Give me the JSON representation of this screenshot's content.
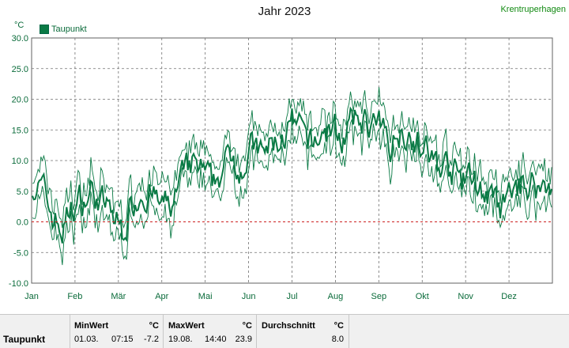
{
  "chart_data": {
    "type": "line",
    "title": "Jahr 2023",
    "station": "Krentruperhagen",
    "ylabel": "°C",
    "ylim": [
      -10,
      30
    ],
    "yticks": [
      "30.0",
      "25.0",
      "20.0",
      "15.0",
      "10.0",
      "5.0",
      "0.0",
      "-5.0",
      "-10.0"
    ],
    "months": [
      "Jan",
      "Feb",
      "Mär",
      "Apr",
      "Mai",
      "Jun",
      "Jul",
      "Aug",
      "Sep",
      "Okt",
      "Nov",
      "Dez"
    ],
    "grid": true,
    "legend": "top-left",
    "series": [
      {
        "name": "Taupunkt",
        "color": "#0a7a45"
      }
    ],
    "weekly_mean": [
      6.5,
      5.0,
      1.0,
      -1.5,
      2.5,
      3.5,
      5.0,
      3.0,
      1.0,
      -1.5,
      3.0,
      5.5,
      4.5,
      2.0,
      3.0,
      6.5,
      9.0,
      8.0,
      5.5,
      8.5,
      11.0,
      9.5,
      12.0,
      10.5,
      12.5,
      13.5,
      15.5,
      14.0,
      12.0,
      14.5,
      15.0,
      14.0,
      15.5,
      17.0,
      16.0,
      14.5,
      13.0,
      15.5,
      14.5,
      12.0,
      10.0,
      9.0,
      8.5,
      6.5,
      7.0,
      5.5,
      3.0,
      1.5,
      4.5,
      6.0,
      6.5,
      5.5,
      6.0
    ],
    "zero_line": {
      "value": 0,
      "color": "#cc2222"
    }
  },
  "stats": {
    "name": "Taupunkt",
    "min": {
      "header": "MinWert",
      "unit": "°C",
      "date": "01.03.",
      "time": "07:15",
      "value": "-7.2"
    },
    "max": {
      "header": "MaxWert",
      "unit": "°C",
      "date": "19.08.",
      "time": "14:40",
      "value": "23.9"
    },
    "avg": {
      "header": "Durchschnitt",
      "unit": "°C",
      "value": "8.0"
    }
  }
}
